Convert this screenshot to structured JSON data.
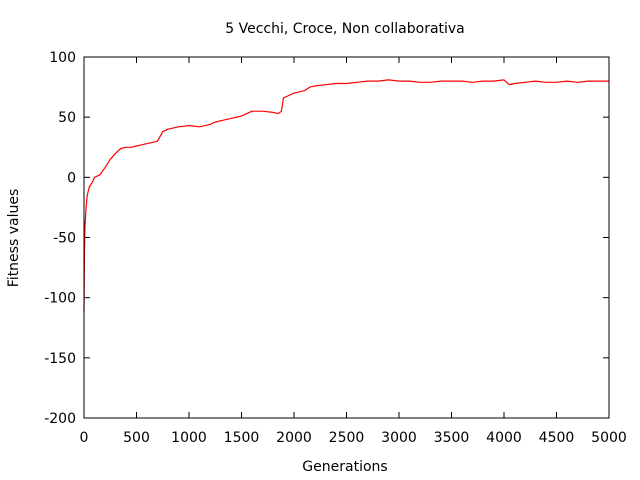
{
  "chart_data": {
    "type": "line",
    "title": "5 Vecchi, Croce, Non collaborativa",
    "xlabel": "Generations",
    "ylabel": "Fitness values",
    "xlim": [
      0,
      5000
    ],
    "ylim": [
      -200,
      100
    ],
    "xticks": [
      0,
      500,
      1000,
      1500,
      2000,
      2500,
      3000,
      3500,
      4000,
      4500,
      5000
    ],
    "yticks": [
      -200,
      -150,
      -100,
      -50,
      0,
      50,
      100
    ],
    "grid": false,
    "legend": "none",
    "series": [
      {
        "color": "#ff0000",
        "x": [
          0,
          5,
          10,
          20,
          30,
          50,
          80,
          100,
          150,
          200,
          250,
          300,
          350,
          400,
          450,
          500,
          550,
          600,
          650,
          700,
          750,
          800,
          900,
          1000,
          1100,
          1200,
          1250,
          1300,
          1400,
          1500,
          1550,
          1600,
          1700,
          1800,
          1850,
          1880,
          1900,
          1950,
          2000,
          2100,
          2150,
          2200,
          2300,
          2400,
          2500,
          2600,
          2700,
          2800,
          2900,
          3000,
          3100,
          3200,
          3300,
          3400,
          3500,
          3600,
          3700,
          3800,
          3900,
          4000,
          4050,
          4100,
          4200,
          4300,
          4400,
          4500,
          4600,
          4700,
          4800,
          4900,
          5000
        ],
        "y": [
          -112,
          -60,
          -40,
          -25,
          -15,
          -8,
          -4,
          0,
          2,
          8,
          15,
          20,
          24,
          25,
          25,
          26,
          27,
          28,
          29,
          30,
          38,
          40,
          42,
          43,
          42,
          44,
          46,
          47,
          49,
          51,
          53,
          55,
          55,
          54,
          53,
          55,
          66,
          68,
          70,
          72,
          75,
          76,
          77,
          78,
          78,
          79,
          80,
          80,
          81,
          80,
          80,
          79,
          79,
          80,
          80,
          80,
          79,
          80,
          80,
          81,
          77,
          78,
          79,
          80,
          79,
          79,
          80,
          79,
          80,
          80,
          80
        ]
      }
    ]
  }
}
